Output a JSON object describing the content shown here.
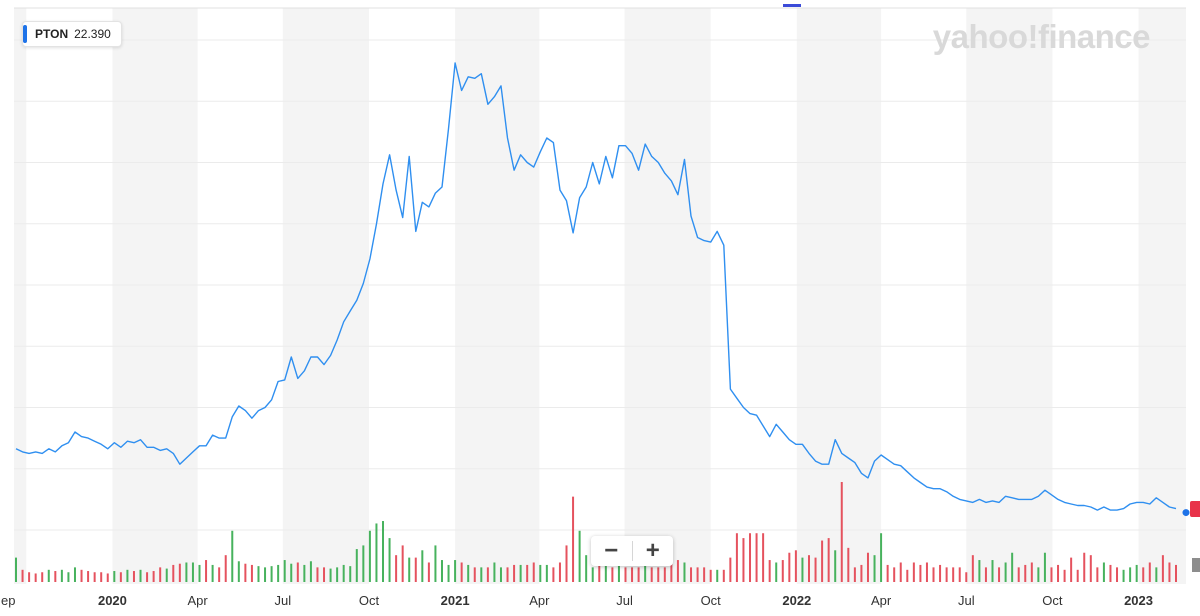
{
  "ticker": {
    "symbol": "PTON",
    "price": "22.390"
  },
  "logo_text": "yahoo!finance",
  "zoom": {
    "minus": "−",
    "plus": "+"
  },
  "colors": {
    "line": "#2f8ff0",
    "vol_up": "#47b25d",
    "vol_down": "#e5525e",
    "band": "#f4f4f4",
    "accent": "#1e73e8"
  },
  "icons": {
    "zoom_out": "minus-icon",
    "zoom_in": "plus-icon"
  },
  "chart_data": {
    "type": "line",
    "title": "",
    "xlabel": "",
    "ylabel": "",
    "x_tick_labels": [
      "ep",
      "2020",
      "Apr",
      "Jul",
      "Oct",
      "2021",
      "Apr",
      "Jul",
      "Oct",
      "2022",
      "Apr",
      "Jul",
      "Oct",
      "2023"
    ],
    "grid": true,
    "x": [
      "2019-09-20",
      "2019-09-27",
      "2019-10-04",
      "2019-10-11",
      "2019-10-18",
      "2019-10-25",
      "2019-11-01",
      "2019-11-08",
      "2019-11-15",
      "2019-11-22",
      "2019-11-29",
      "2019-12-06",
      "2019-12-13",
      "2019-12-20",
      "2019-12-27",
      "2020-01-03",
      "2020-01-10",
      "2020-01-17",
      "2020-01-24",
      "2020-01-31",
      "2020-02-07",
      "2020-02-14",
      "2020-02-21",
      "2020-02-28",
      "2020-03-06",
      "2020-03-13",
      "2020-03-20",
      "2020-03-27",
      "2020-04-03",
      "2020-04-10",
      "2020-04-17",
      "2020-04-24",
      "2020-05-01",
      "2020-05-08",
      "2020-05-15",
      "2020-05-22",
      "2020-05-29",
      "2020-06-05",
      "2020-06-12",
      "2020-06-19",
      "2020-06-26",
      "2020-07-03",
      "2020-07-10",
      "2020-07-17",
      "2020-07-24",
      "2020-07-31",
      "2020-08-07",
      "2020-08-14",
      "2020-08-21",
      "2020-08-28",
      "2020-09-04",
      "2020-09-11",
      "2020-09-18",
      "2020-09-25",
      "2020-10-02",
      "2020-10-09",
      "2020-10-16",
      "2020-10-23",
      "2020-10-30",
      "2020-11-06",
      "2020-11-13",
      "2020-11-20",
      "2020-11-27",
      "2020-12-04",
      "2020-12-11",
      "2020-12-18",
      "2020-12-25",
      "2021-01-01",
      "2021-01-08",
      "2021-01-15",
      "2021-01-22",
      "2021-01-29",
      "2021-02-05",
      "2021-02-12",
      "2021-02-19",
      "2021-02-26",
      "2021-03-05",
      "2021-03-12",
      "2021-03-19",
      "2021-03-26",
      "2021-04-02",
      "2021-04-09",
      "2021-04-16",
      "2021-04-23",
      "2021-04-30",
      "2021-05-07",
      "2021-05-14",
      "2021-05-21",
      "2021-05-28",
      "2021-06-04",
      "2021-06-11",
      "2021-06-18",
      "2021-06-25",
      "2021-07-02",
      "2021-07-09",
      "2021-07-16",
      "2021-07-23",
      "2021-07-30",
      "2021-08-06",
      "2021-08-13",
      "2021-08-20",
      "2021-08-27",
      "2021-09-03",
      "2021-09-10",
      "2021-09-17",
      "2021-09-24",
      "2021-10-01",
      "2021-10-08",
      "2021-10-15",
      "2021-10-22",
      "2021-10-29",
      "2021-11-05",
      "2021-11-12",
      "2021-11-19",
      "2021-11-26",
      "2021-12-03",
      "2021-12-10",
      "2021-12-17",
      "2021-12-24",
      "2021-12-31",
      "2022-01-07",
      "2022-01-14",
      "2022-01-21",
      "2022-01-28",
      "2022-02-04",
      "2022-02-11",
      "2022-02-18",
      "2022-02-25",
      "2022-03-04",
      "2022-03-11",
      "2022-03-18",
      "2022-03-25",
      "2022-04-01",
      "2022-04-08",
      "2022-04-15",
      "2022-04-22",
      "2022-04-29",
      "2022-05-06",
      "2022-05-13",
      "2022-05-20",
      "2022-05-27",
      "2022-06-03",
      "2022-06-10",
      "2022-06-17",
      "2022-06-24",
      "2022-07-01",
      "2022-07-08",
      "2022-07-15",
      "2022-07-22",
      "2022-07-29",
      "2022-08-05",
      "2022-08-12",
      "2022-08-19",
      "2022-08-26",
      "2022-09-02",
      "2022-09-09",
      "2022-09-16",
      "2022-09-23",
      "2022-09-30",
      "2022-10-07",
      "2022-10-14",
      "2022-10-21",
      "2022-10-28",
      "2022-11-04",
      "2022-11-11",
      "2022-11-18",
      "2022-11-25",
      "2022-12-02",
      "2022-12-09",
      "2022-12-16",
      "2022-12-23",
      "2022-12-30",
      "2023-01-06",
      "2023-01-13",
      "2023-01-20",
      "2023-01-27",
      "2023-02-03",
      "2023-02-10"
    ],
    "series": [
      {
        "values": [
          26.5,
          25.5,
          25.0,
          25.5,
          25.0,
          26.5,
          25.5,
          27.5,
          28.5,
          32.0,
          30.5,
          30.0,
          29.0,
          28.0,
          26.5,
          28.5,
          27.0,
          29.0,
          28.5,
          29.5,
          27.0,
          27.0,
          26.0,
          26.5,
          25.0,
          21.5,
          23.5,
          25.5,
          27.5,
          27.5,
          31.0,
          30.0,
          30.0,
          37.0,
          40.5,
          39.0,
          36.5,
          39.0,
          40.0,
          42.5,
          48.5,
          49.0,
          56.5,
          49.5,
          52.0,
          56.5,
          56.5,
          54.0,
          57.0,
          62.0,
          68.0,
          71.5,
          75.0,
          80.5,
          88.5,
          100.0,
          113.0,
          122.5,
          111.0,
          102.0,
          122.0,
          97.5,
          107.0,
          105.5,
          110.0,
          112.0,
          131.0,
          152.5,
          143.5,
          148.0,
          147.5,
          149.0,
          139.0,
          141.5,
          145.0,
          128.0,
          117.5,
          122.5,
          120.0,
          118.5,
          123.5,
          128.0,
          126.5,
          111.0,
          107.5,
          97.0,
          108.5,
          112.0,
          120.0,
          113.0,
          122.0,
          115.0,
          125.5,
          125.5,
          123.0,
          117.5,
          126.0,
          122.0,
          120.0,
          116.5,
          114.0,
          109.5,
          121.0,
          102.5,
          95.5,
          94.5,
          94.0,
          97.5,
          93.0,
          46.0,
          43.0,
          40.0,
          38.0,
          37.5,
          34.0,
          30.5,
          34.5,
          32.0,
          29.5,
          28.0,
          28.0,
          25.0,
          22.5,
          21.5,
          21.5,
          29.5,
          25.0,
          23.5,
          22.0,
          18.5,
          17.0,
          22.5,
          24.5,
          23.0,
          21.5,
          21.0,
          19.0,
          17.0,
          15.5,
          14.0,
          13.5,
          13.5,
          12.5,
          11.0,
          10.0,
          9.5,
          9.0,
          10.0,
          9.0,
          9.5,
          9.0,
          11.0,
          10.5,
          10.0,
          10.0,
          10.0,
          11.0,
          13.0,
          11.5,
          10.0,
          9.0,
          8.5,
          8.0,
          8.0,
          7.5,
          6.5,
          7.5,
          6.5,
          6.5,
          7.0,
          8.5,
          9.0,
          9.0,
          8.5,
          10.5,
          9.0,
          7.5,
          7.0
        ]
      }
    ],
    "volume": {
      "up": [
        1,
        0,
        0,
        0,
        0,
        1,
        0,
        1,
        1,
        1,
        0,
        0,
        0,
        0,
        0,
        1,
        0,
        1,
        0,
        1,
        0,
        0,
        0,
        1,
        0,
        0,
        1,
        1,
        1,
        0,
        1,
        0,
        0,
        1,
        1,
        0,
        0,
        1,
        1,
        1,
        1,
        1,
        1,
        0,
        1,
        1,
        0,
        0,
        1,
        1,
        1,
        1,
        1,
        1,
        1,
        1,
        1,
        1,
        0,
        0,
        1,
        0,
        1,
        0,
        1,
        1,
        1,
        1,
        0,
        1,
        0,
        1,
        0,
        1,
        1,
        0,
        0,
        1,
        0,
        0,
        1,
        1,
        0,
        0,
        0,
        0,
        1,
        1,
        1,
        0,
        1,
        0,
        1,
        0,
        0,
        0,
        1,
        0,
        0,
        0,
        0,
        0,
        1,
        0,
        0,
        0,
        0,
        1,
        0,
        0,
        0,
        0,
        0,
        0,
        0,
        0,
        1,
        0,
        0,
        0,
        1,
        0,
        0,
        0,
        0,
        1,
        0,
        0,
        0,
        0,
        0,
        1,
        1,
        0,
        0,
        0,
        0,
        0,
        0,
        0,
        0,
        0,
        0,
        0,
        0,
        0,
        0,
        1,
        0,
        1,
        0,
        1,
        1,
        0,
        0,
        0,
        1,
        1,
        0,
        0,
        0,
        0,
        0,
        0,
        0,
        0,
        1,
        0,
        0,
        1,
        1,
        1,
        0,
        0,
        1,
        0,
        0,
        0
      ],
      "values": [
        0.2,
        0.1,
        0.08,
        0.07,
        0.08,
        0.1,
        0.09,
        0.1,
        0.08,
        0.12,
        0.1,
        0.09,
        0.08,
        0.08,
        0.07,
        0.09,
        0.08,
        0.1,
        0.09,
        0.1,
        0.08,
        0.09,
        0.12,
        0.11,
        0.14,
        0.15,
        0.16,
        0.16,
        0.14,
        0.18,
        0.14,
        0.12,
        0.22,
        0.42,
        0.17,
        0.15,
        0.14,
        0.13,
        0.12,
        0.13,
        0.14,
        0.18,
        0.15,
        0.16,
        0.14,
        0.17,
        0.12,
        0.12,
        0.11,
        0.12,
        0.14,
        0.13,
        0.27,
        0.3,
        0.42,
        0.48,
        0.5,
        0.36,
        0.22,
        0.3,
        0.2,
        0.2,
        0.26,
        0.16,
        0.3,
        0.18,
        0.14,
        0.18,
        0.16,
        0.14,
        0.12,
        0.12,
        0.12,
        0.16,
        0.12,
        0.12,
        0.14,
        0.14,
        0.14,
        0.16,
        0.14,
        0.14,
        0.12,
        0.16,
        0.3,
        0.7,
        0.42,
        0.22,
        0.12,
        0.14,
        0.14,
        0.12,
        0.16,
        0.12,
        0.12,
        0.12,
        0.14,
        0.12,
        0.12,
        0.12,
        0.2,
        0.18,
        0.16,
        0.12,
        0.12,
        0.12,
        0.1,
        0.1,
        0.1,
        0.2,
        0.4,
        0.36,
        0.4,
        0.4,
        0.4,
        0.18,
        0.16,
        0.18,
        0.24,
        0.26,
        0.2,
        0.22,
        0.2,
        0.34,
        0.36,
        0.26,
        0.82,
        0.28,
        0.12,
        0.14,
        0.24,
        0.22,
        0.4,
        0.14,
        0.12,
        0.16,
        0.1,
        0.16,
        0.14,
        0.16,
        0.12,
        0.14,
        0.12,
        0.12,
        0.12,
        0.08,
        0.22,
        0.18,
        0.12,
        0.18,
        0.12,
        0.16,
        0.24,
        0.12,
        0.14,
        0.16,
        0.12,
        0.24,
        0.12,
        0.14,
        0.1,
        0.2,
        0.1,
        0.24,
        0.22,
        0.12,
        0.16,
        0.14,
        0.12,
        0.1,
        0.12,
        0.14,
        0.12,
        0.16,
        0.12,
        0.22,
        0.16,
        0.14
      ]
    }
  }
}
